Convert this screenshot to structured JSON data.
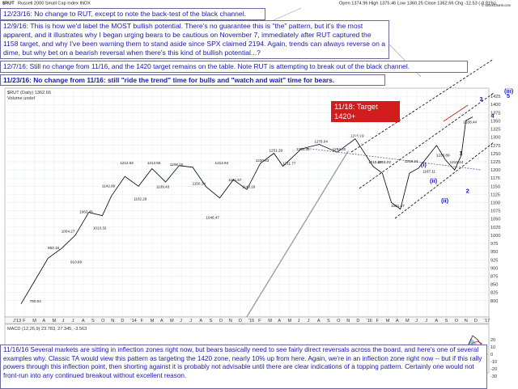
{
  "chart_data": {
    "type": "line",
    "symbol": "$RUT",
    "subtitle": "Russell 2000 Small Cap Index  INDX",
    "ohlc_readout": "Open 1374.96  High 1375.46  Low 1360.25  Close 1362.66  Chg -12.53 (-0.91%)",
    "stockcharts_label": "© StockCharts.com",
    "legend_main": "$RUT (Daily) 1362.66",
    "legend_volume": "Volume undef",
    "macd_label": "MACD (12,26,9) 23.783, 27.345, -3.563",
    "ylim": [
      750,
      1450
    ],
    "x_ticks": [
      "J'13",
      "F",
      "M",
      "A",
      "M",
      "J",
      "J",
      "A",
      "S",
      "O",
      "N",
      "D",
      "'14",
      "F",
      "M",
      "A",
      "M",
      "J",
      "J",
      "A",
      "S",
      "O",
      "N",
      "D",
      "'15",
      "F",
      "M",
      "A",
      "M",
      "J",
      "J",
      "A",
      "S",
      "O",
      "N",
      "D",
      "'16",
      "F",
      "M",
      "A",
      "M",
      "J",
      "J",
      "A",
      "S",
      "O",
      "N",
      "D",
      "'17"
    ],
    "y_ticks": [
      800,
      825,
      850,
      875,
      900,
      925,
      950,
      975,
      1000,
      1025,
      1050,
      1075,
      1100,
      1125,
      1150,
      1175,
      1200,
      1225,
      1250,
      1275,
      1300,
      1325,
      1350,
      1375,
      1400,
      1425
    ],
    "macd_ticks": [
      20,
      10,
      0,
      -10,
      -20,
      -30
    ],
    "x": [
      0,
      0.03,
      0.06,
      0.09,
      0.12,
      0.15,
      0.18,
      0.2,
      0.23,
      0.26,
      0.29,
      0.32,
      0.35,
      0.38,
      0.41,
      0.44,
      0.47,
      0.5,
      0.53,
      0.56,
      0.58,
      0.62,
      0.66,
      0.7,
      0.74,
      0.78,
      0.8,
      0.82,
      0.84,
      0.86,
      0.88,
      0.9,
      0.92,
      0.94,
      0.96,
      0.975,
      0.985,
      1.0
    ],
    "close": [
      790,
      860,
      930,
      960,
      1000,
      1070,
      1060,
      1120,
      1180,
      1150,
      1204,
      1163,
      1213,
      1208,
      1148,
      1114,
      1170,
      1140,
      1220,
      1251,
      1211,
      1264,
      1278,
      1254,
      1295,
      1210,
      1190,
      1100,
      1080,
      1190,
      1205,
      1240,
      1275,
      1230,
      1200,
      1245,
      1351,
      1362
    ],
    "point_labels": [
      {
        "x": 0.03,
        "y": 790,
        "text": "790.04"
      },
      {
        "x": 0.07,
        "y": 953,
        "text": "953.18"
      },
      {
        "x": 0.1,
        "y": 1004,
        "text": "1004.27"
      },
      {
        "x": 0.12,
        "y": 910,
        "text": "910.89"
      },
      {
        "x": 0.14,
        "y": 1063,
        "text": "1063.45"
      },
      {
        "x": 0.17,
        "y": 1013,
        "text": "1013.32"
      },
      {
        "x": 0.19,
        "y": 1142,
        "text": "1142.89"
      },
      {
        "x": 0.23,
        "y": 1212,
        "text": "1212.82"
      },
      {
        "x": 0.26,
        "y": 1102,
        "text": "1102.29"
      },
      {
        "x": 0.29,
        "y": 1213,
        "text": "1213.55"
      },
      {
        "x": 0.31,
        "y": 1139,
        "text": "1139.43"
      },
      {
        "x": 0.34,
        "y": 1208,
        "text": "1208.15"
      },
      {
        "x": 0.39,
        "y": 1150,
        "text": "1150.14"
      },
      {
        "x": 0.42,
        "y": 1046,
        "text": "1046.47"
      },
      {
        "x": 0.44,
        "y": 1213,
        "text": "1213.94"
      },
      {
        "x": 0.47,
        "y": 1161,
        "text": "1161.57"
      },
      {
        "x": 0.5,
        "y": 1140,
        "text": "1140.19"
      },
      {
        "x": 0.53,
        "y": 1220,
        "text": "1220.63"
      },
      {
        "x": 0.56,
        "y": 1251,
        "text": "1251.29"
      },
      {
        "x": 0.59,
        "y": 1211,
        "text": "1211.77"
      },
      {
        "x": 0.62,
        "y": 1254,
        "text": "1254.35"
      },
      {
        "x": 0.66,
        "y": 1278,
        "text": "1278.04"
      },
      {
        "x": 0.7,
        "y": 1254,
        "text": "1254.32"
      },
      {
        "x": 0.74,
        "y": 1295,
        "text": "1295.99"
      },
      {
        "x": 0.78,
        "y": 1215,
        "text": "1215.40"
      },
      {
        "x": 0.8,
        "y": 1215,
        "text": "1215.02"
      },
      {
        "x": 0.83,
        "y": 1081,
        "text": "1081.47"
      },
      {
        "x": 0.86,
        "y": 1218,
        "text": "1218.24"
      },
      {
        "x": 0.9,
        "y": 1187,
        "text": "1187.11"
      },
      {
        "x": 0.93,
        "y": 1236,
        "text": "1236.89"
      },
      {
        "x": 0.96,
        "y": 1215,
        "text": "1215.44"
      },
      {
        "x": 0.99,
        "y": 1338,
        "text": "1338.44"
      }
    ],
    "wave_labels": [
      {
        "x": 0.885,
        "y": 1210,
        "text": "(i)"
      },
      {
        "x": 0.905,
        "y": 1160,
        "text": "(ii)"
      },
      {
        "x": 0.93,
        "y": 1100,
        "text": "(ii)"
      },
      {
        "x": 0.97,
        "y": 1245,
        "text": "1"
      },
      {
        "x": 0.985,
        "y": 1130,
        "text": "2"
      },
      {
        "x": 1.015,
        "y": 1410,
        "text": "3"
      },
      {
        "x": 1.04,
        "y": 1360,
        "text": "4"
      },
      {
        "x": 1.07,
        "y": 1435,
        "text": "(iii)"
      },
      {
        "x": 1.075,
        "y": 1420,
        "text": "5"
      }
    ]
  },
  "notes": {
    "n1": "12/23/16:   No change to RUT, except to note the back-test of the black channel.",
    "n2": "12/9/16:   This is how we'd label the MOST bullish potential.   There's no guarantee this is \"the\" pattern, but it's the most apparent, and it illustrates why I began urging bears to be cautious on November 7, immediately after RUT captured the 1158 target, and why I've been warning them to stand aside since SPX claimed 2194.   Again, trends can always reverse on a dime, but why bet on a bearish reversal when there's this kind of bullish potential...?",
    "n3": "12/7/16:   Still no change from 11/16, and the 1420 target remains on the table.   Note RUT is attempting to break out of the black channel.",
    "n4": "11/23/16:   No change from 11/16:   still \"ride the trend\" time for bulls and \"watch and wait\" time for bears.",
    "n5": "11/16/16   Several markets are sitting in inflection zones right now, but bears basically need to see fairly direct reversals across the board, and here's one of several examples why.  Classic TA would view this pattern as targeting the 1420 zone, nearly 10% up from here.  Again, we're in an inflection zone right now -- but if this rally powers through this inflection point, then shorting against it is probably not advisable until there are clear indications of a topping pattern.  Certainly one would not front-run into any continued breakout without excellent reason.",
    "target1": "11/18: Target 1420+",
    "target2": "12/9 Update: 1420-40"
  },
  "colors": {
    "price": "#000000",
    "target_box": "#d31d1d",
    "note_text": "#1a1aa8",
    "grid": "#dfe3ea",
    "macd_fill": "#a9c6e6"
  }
}
